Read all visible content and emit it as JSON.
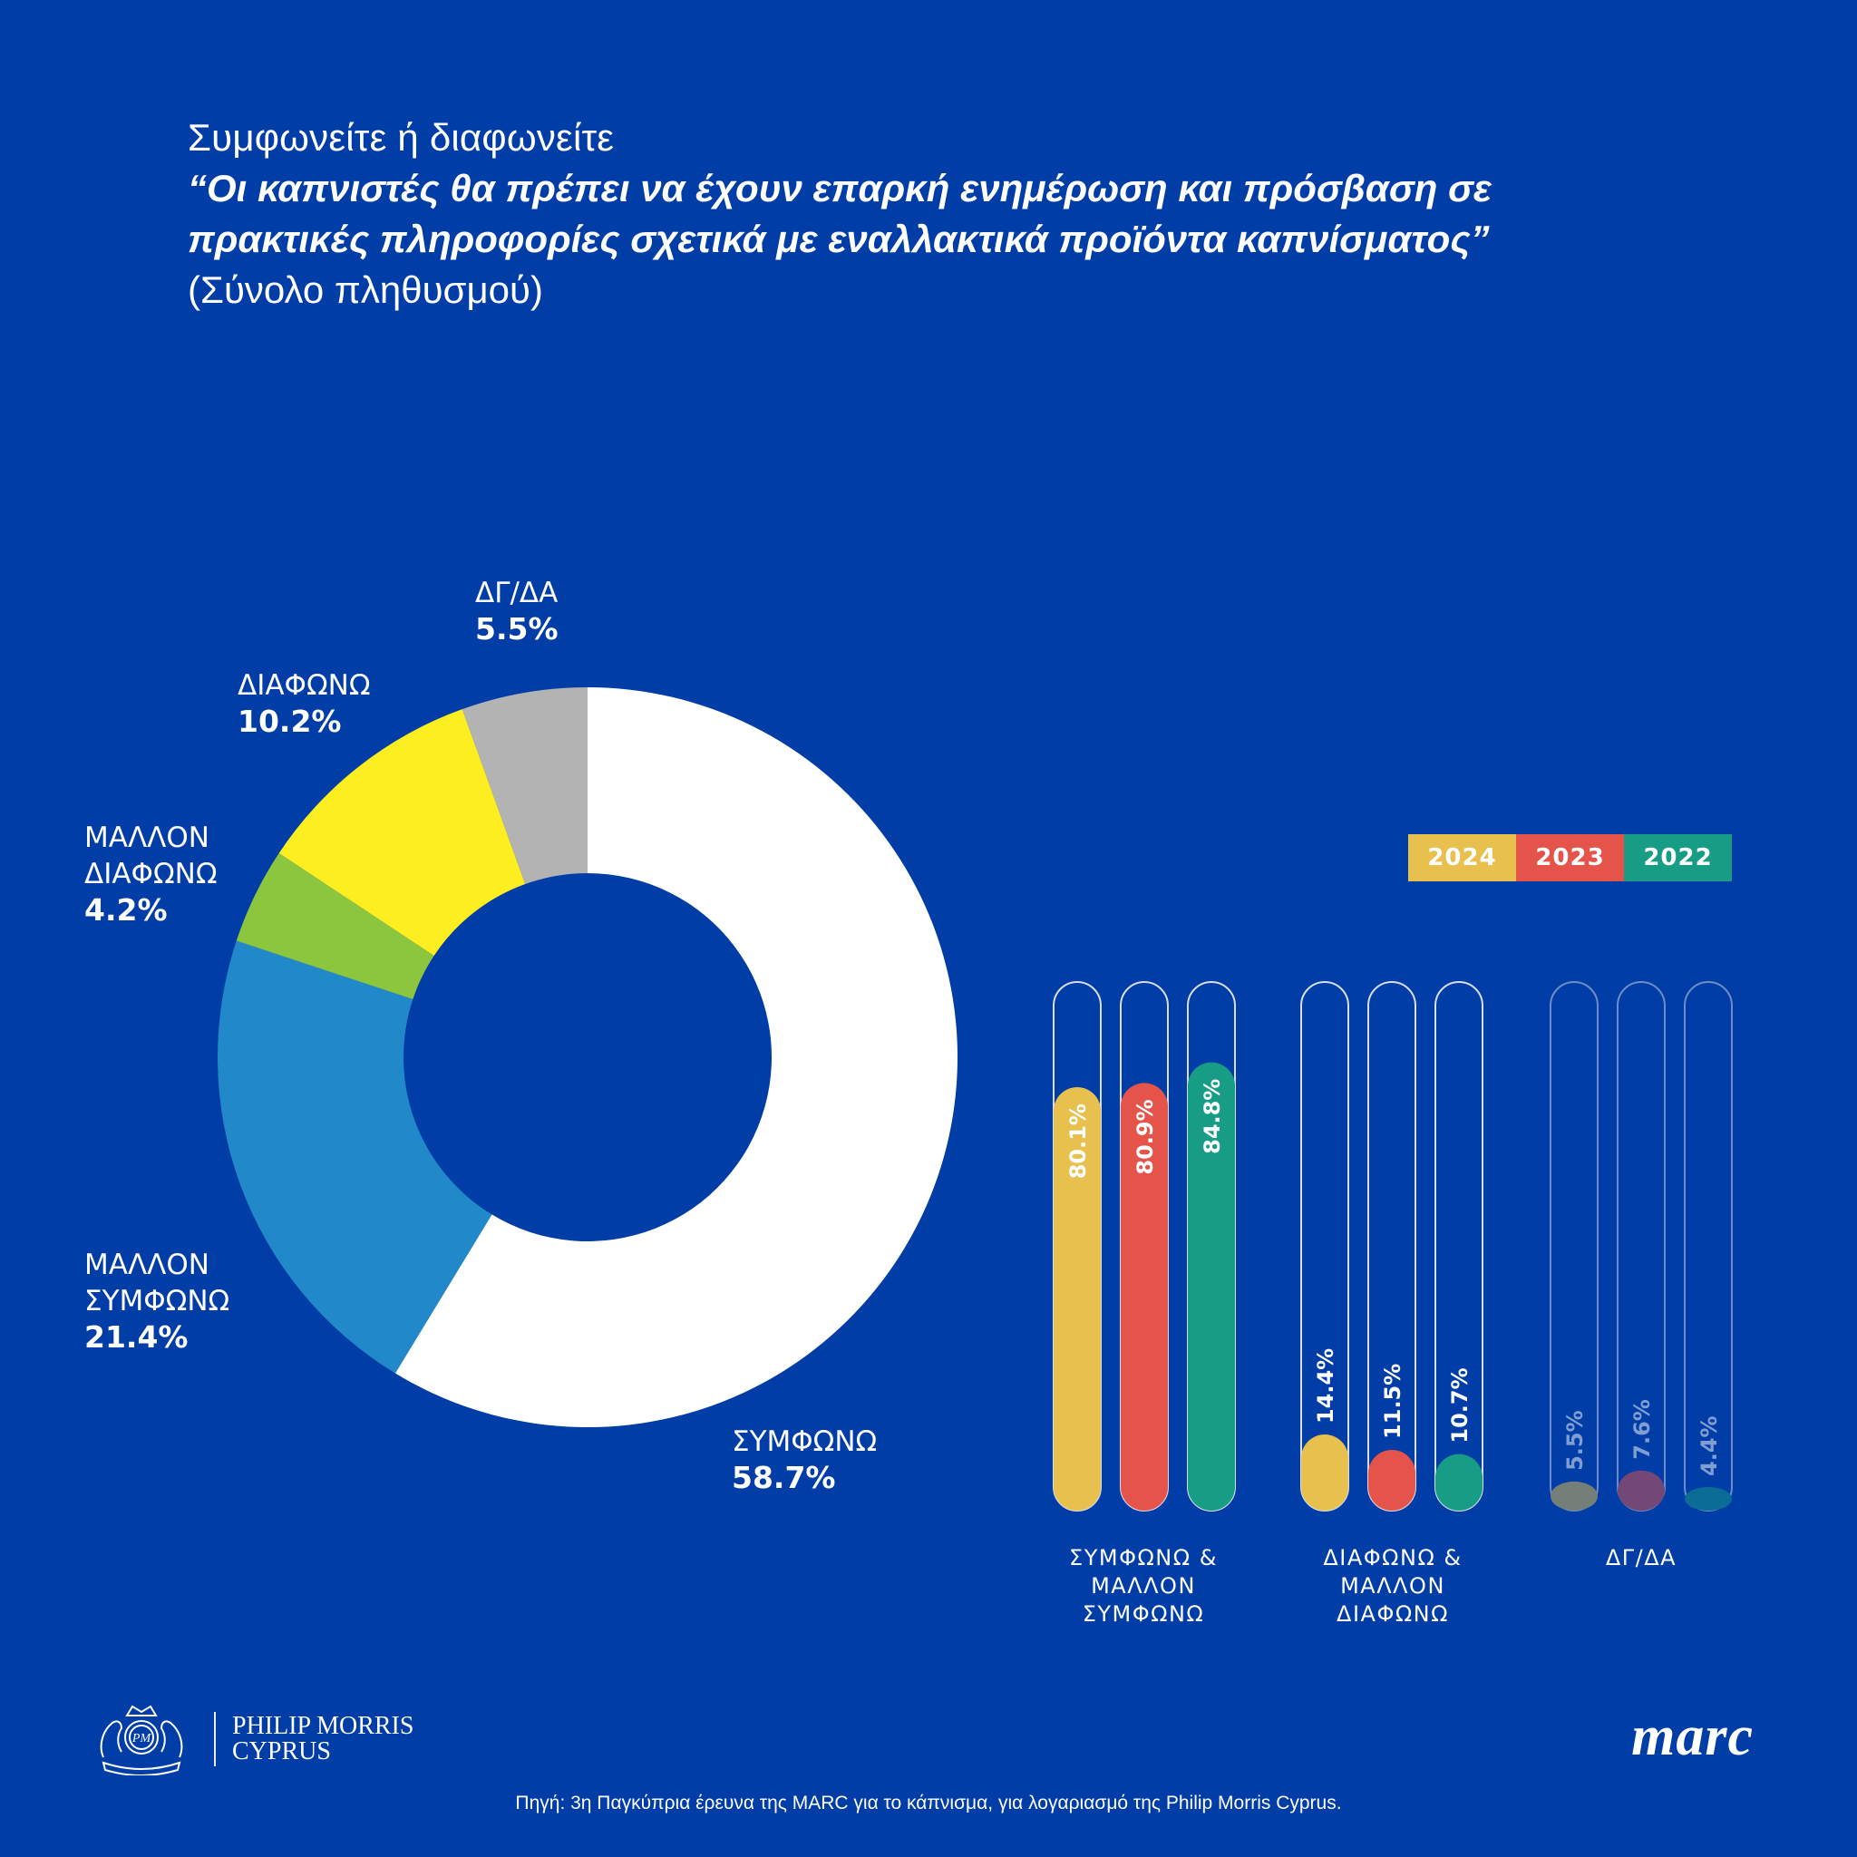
{
  "header": {
    "line1": "Συμφωνείτε ή διαφωνείτε",
    "quote_line1": "“Οι καπνιστές θα πρέπει να έχουν επαρκή ενημέρωση και πρόσβαση σε",
    "quote_line2": "πρακτικές πληροφορίες σχετικά με εναλλακτικά προϊόντα καπνίσματος”",
    "subtitle": "(Σύνολο πληθυσμού)"
  },
  "chart_data": [
    {
      "type": "pie",
      "variant": "donut",
      "title": "Σύνολο πληθυσμού",
      "slices": [
        {
          "label": "ΣΥΜΦΩΝΩ",
          "value": 58.7,
          "display": "58.7%",
          "color": "#ffffff"
        },
        {
          "label": "ΜΑΛΛΟΝ ΣΥΜΦΩΝΩ",
          "value": 21.4,
          "display": "21.4%",
          "color": "#2189c9"
        },
        {
          "label": "ΜΑΛΛΟΝ ΔΙΑΦΩΝΩ",
          "value": 4.2,
          "display": "4.2%",
          "color": "#8cc63f"
        },
        {
          "label": "ΔΙΑΦΩΝΩ",
          "value": 10.2,
          "display": "10.2%",
          "color": "#fdee21"
        },
        {
          "label": "ΔΓ/ΔΑ",
          "value": 5.5,
          "display": "5.5%",
          "color": "#b3b3b3"
        }
      ],
      "start": "top",
      "direction": "clockwise"
    },
    {
      "type": "bar",
      "orientation": "vertical",
      "ylim": [
        0,
        100
      ],
      "categories": [
        "ΣΥΜΦΩΝΩ &\nΜΑΛΛΟΝ\nΣΥΜΦΩΝΩ",
        "ΔΙΑΦΩΝΩ &\nΜΑΛΛΟΝ\nΔΙΑΦΩΝΩ",
        "ΔΓ/ΔΑ"
      ],
      "legend_position": "top-right",
      "series": [
        {
          "name": "2024",
          "color": "#e8c04e",
          "values": [
            80.1,
            14.4,
            5.5
          ],
          "labels": [
            "80.1%",
            "14.4%",
            "5.5%"
          ]
        },
        {
          "name": "2023",
          "color": "#e5544a",
          "values": [
            80.9,
            11.5,
            7.6
          ],
          "labels": [
            "80.9%",
            "11.5%",
            "7.6%"
          ]
        },
        {
          "name": "2022",
          "color": "#179d86",
          "values": [
            84.8,
            10.7,
            4.4
          ],
          "labels": [
            "84.8%",
            "10.7%",
            "4.4%"
          ]
        }
      ],
      "dimmed_categories": [
        "ΔΓ/ΔΑ"
      ]
    }
  ],
  "legend": [
    {
      "label": "2024",
      "color": "#e8c04e"
    },
    {
      "label": "2023",
      "color": "#e5544a"
    },
    {
      "label": "2022",
      "color": "#179d86"
    }
  ],
  "footer": {
    "pm_line1": "PHILIP MORRIS",
    "pm_line2": "CYPRUS",
    "pm_emblem": "pm-crest-icon",
    "marc": "marc",
    "source": "Πηγή: 3η Παγκύπρια έρευνα της MARC για το κάπνισμα, για λογαριασμό της Philip Morris Cyprus."
  },
  "colors": {
    "background": "#003da6",
    "text": "#ffffff"
  }
}
